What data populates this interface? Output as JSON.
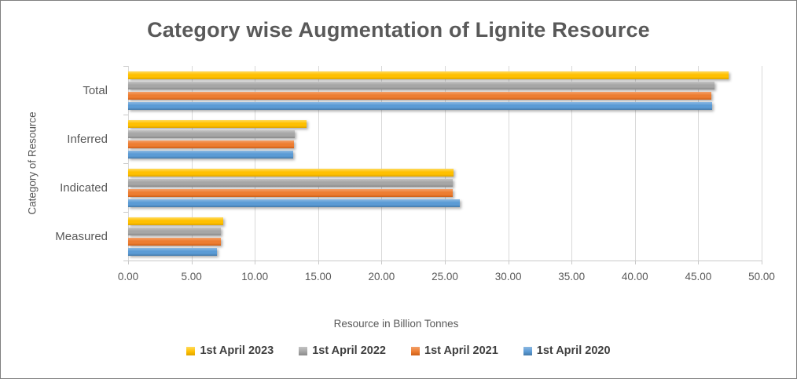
{
  "chart_data": {
    "type": "bar",
    "orientation": "horizontal",
    "title": "Category wise Augmentation of Lignite Resource",
    "xlabel": "Resource in Billion Tonnes",
    "ylabel": "Category of Resource",
    "xlim": [
      0,
      50
    ],
    "x_tick_labels": [
      "0.00",
      "5.00",
      "10.00",
      "15.00",
      "20.00",
      "25.00",
      "30.00",
      "35.00",
      "40.00",
      "45.00",
      "50.00"
    ],
    "grid": true,
    "legend_position": "bottom",
    "categories": [
      "Total",
      "Inferred",
      "Indicated",
      "Measured"
    ],
    "series": [
      {
        "name": "1st April 2023",
        "color": "#FFC000",
        "color_light": "#FFDA5E",
        "color_dark": "#DFA400",
        "values": [
          47.4,
          14.1,
          25.7,
          7.5
        ]
      },
      {
        "name": "1st April 2022",
        "color": "#A6A6A6",
        "color_light": "#C4C4C4",
        "color_dark": "#8A8A8A",
        "values": [
          46.3,
          13.15,
          25.65,
          7.35
        ]
      },
      {
        "name": "1st April 2021",
        "color": "#ED7D31",
        "color_light": "#F3A06A",
        "color_dark": "#CC5F18",
        "values": [
          46.0,
          13.1,
          25.6,
          7.3
        ]
      },
      {
        "name": "1st April 2020",
        "color": "#5B9BD5",
        "color_light": "#8CB8E1",
        "color_dark": "#4479A9",
        "values": [
          46.1,
          13.05,
          26.2,
          7.0
        ]
      }
    ],
    "style": {
      "grid_color": "#D9D9D9",
      "axis_text_color": "#595959",
      "title_color": "#595959",
      "legend_text_color": "#3F3F3F"
    }
  }
}
